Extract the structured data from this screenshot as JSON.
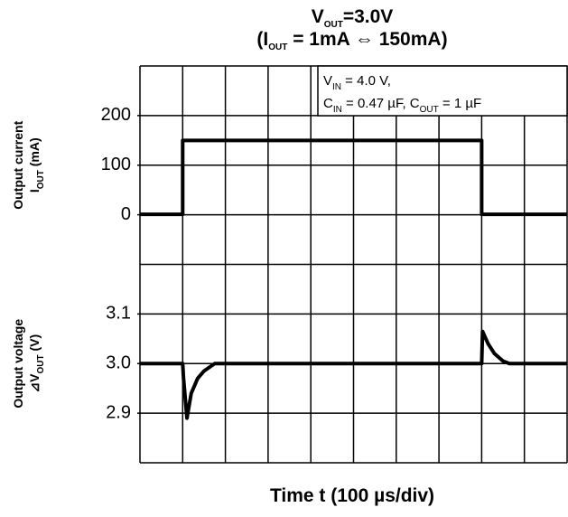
{
  "chart_data": [
    {
      "type": "line",
      "title": [
        [
          "V",
          "OUT",
          "=3.0V"
        ],
        [
          "(I",
          "OUT",
          " = 1mA ⇔ 150mA)"
        ]
      ],
      "xlabel": "Time  t  (100 µs/div)",
      "ylabel": [
        "Output current",
        [
          "I",
          "OUT",
          "  (mA)"
        ]
      ],
      "annotation": [
        [
          "V",
          "IN",
          " = 4.0 V,"
        ],
        [
          "C",
          "IN",
          " = 0.47 µF, C",
          "OUT",
          " = 1 µF"
        ]
      ],
      "xlim": [
        0,
        1000
      ],
      "xticks": [
        0,
        100,
        200,
        300,
        400,
        500,
        600,
        700,
        800,
        900,
        1000
      ],
      "ylim": [
        -500,
        300
      ],
      "yticks": [
        0,
        100,
        200
      ],
      "x": [
        0,
        100,
        100,
        800,
        800,
        1000
      ],
      "series": [
        {
          "color": "#000000",
          "values": [
            1,
            1,
            150,
            150,
            1,
            1
          ]
        }
      ]
    },
    {
      "type": "line",
      "ylabel": [
        "Output voltage",
        [
          "⊿V",
          "OUT",
          "  (V)"
        ]
      ],
      "xlim": [
        0,
        1000
      ],
      "ylim": [
        2.8,
        3.6
      ],
      "yticks": [
        3.1,
        {
          "value": 3,
          "label": "3.0"
        },
        2.9
      ],
      "x": [
        0,
        100,
        102,
        110,
        120,
        135,
        150,
        175,
        800,
        802,
        815,
        830,
        850,
        865,
        1000
      ],
      "series": [
        {
          "color": "#000000",
          "values": [
            3.0,
            3.0,
            2.97,
            2.89,
            2.94,
            2.97,
            2.985,
            3.0,
            3.0,
            3.065,
            3.04,
            3.02,
            3.005,
            3.0,
            3.0
          ]
        }
      ]
    }
  ]
}
